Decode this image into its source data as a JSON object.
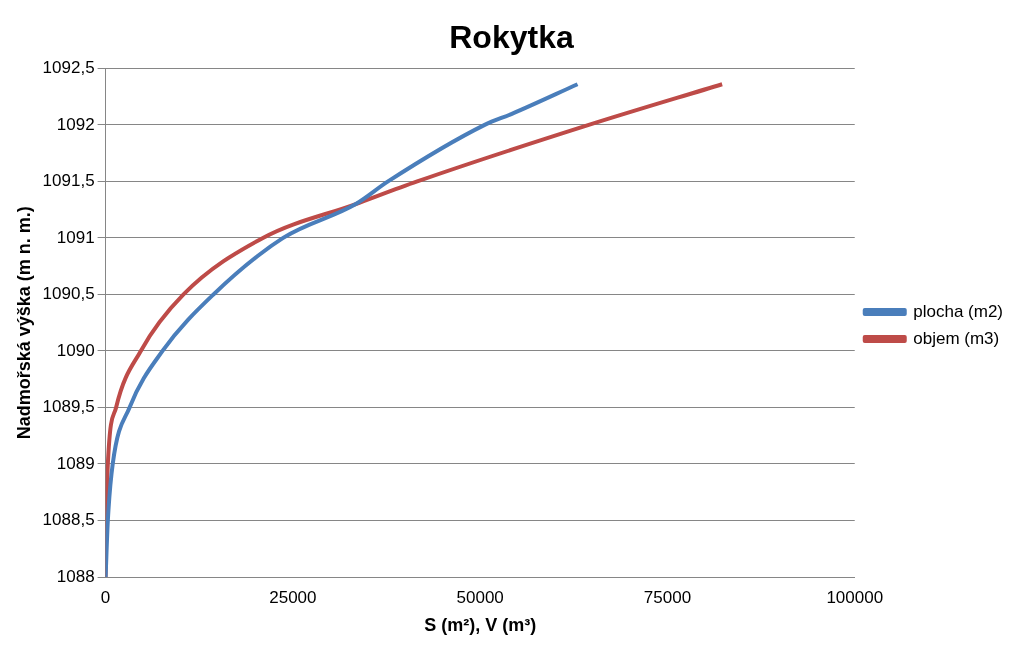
{
  "chart_data": {
    "type": "line",
    "title": "Rokytka",
    "xlabel": "S (m²), V (m³)",
    "ylabel": "Nadmořská výška (m n. m.)",
    "series": [
      {
        "name": "plocha (m2)",
        "color": "#4a7ebb",
        "x": [
          0,
          300,
          950,
          3200,
          7600,
          14400,
          23700,
          33400,
          37700,
          50600,
          54300,
          63000
        ],
        "values": [
          1088,
          1088.5,
          1089,
          1089.5,
          1090,
          1090.5,
          1091,
          1091.3,
          1091.5,
          1092,
          1092.1,
          1092.36
        ]
      },
      {
        "name": "objem (m3)",
        "color": "#be4b48",
        "x": [
          0,
          100,
          300,
          1400,
          4700,
          10400,
          21000,
          33400,
          41600,
          64500,
          82300
        ],
        "values": [
          1088,
          1088.5,
          1089,
          1089.5,
          1090,
          1090.5,
          1091,
          1091.3,
          1091.5,
          1092,
          1092.36
        ]
      }
    ],
    "xlim": [
      0,
      100000
    ],
    "xticks": [
      0,
      25000,
      50000,
      75000,
      100000
    ],
    "ylim": [
      1088,
      1092.5
    ],
    "yticks": [
      {
        "value": 1088,
        "label": "1088"
      },
      {
        "value": 1088.5,
        "label": "1088,5"
      },
      {
        "value": 1089,
        "label": "1089"
      },
      {
        "value": 1089.5,
        "label": "1089,5"
      },
      {
        "value": 1090,
        "label": "1090"
      },
      {
        "value": 1090.5,
        "label": "1090,5"
      },
      {
        "value": 1091,
        "label": "1091"
      },
      {
        "value": 1091.5,
        "label": "1091,5"
      },
      {
        "value": 1092,
        "label": "1092"
      },
      {
        "value": 1092.5,
        "label": "1092,5"
      }
    ],
    "grid": "y",
    "legend": "right",
    "marker": "none",
    "line_style": "solid"
  }
}
